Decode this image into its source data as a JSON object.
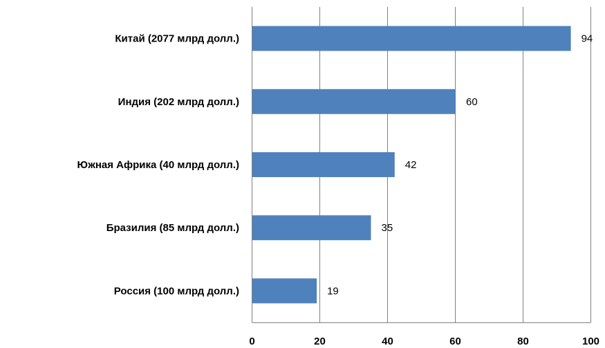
{
  "chart_data": {
    "type": "bar",
    "orientation": "horizontal",
    "categories": [
      "Китай (2077 млрд долл.)",
      "Индия (202 млрд долл.)",
      "Южная Африка (40 млрд долл.)",
      "Бразилия (85 млрд долл.)",
      "Россия (100 млрд долл.)"
    ],
    "values": [
      94,
      60,
      42,
      35,
      19
    ],
    "data_labels": [
      "94",
      "60",
      "42",
      "35",
      "19"
    ],
    "xlim": [
      0,
      100
    ],
    "x_ticks": [
      "0",
      "20",
      "40",
      "60",
      "80",
      "100"
    ],
    "title": "",
    "xlabel": "",
    "ylabel": "",
    "grid": "vertical",
    "legend": "none",
    "bar_color": "#4f81bd",
    "grid_color": "#7f7f7f"
  }
}
